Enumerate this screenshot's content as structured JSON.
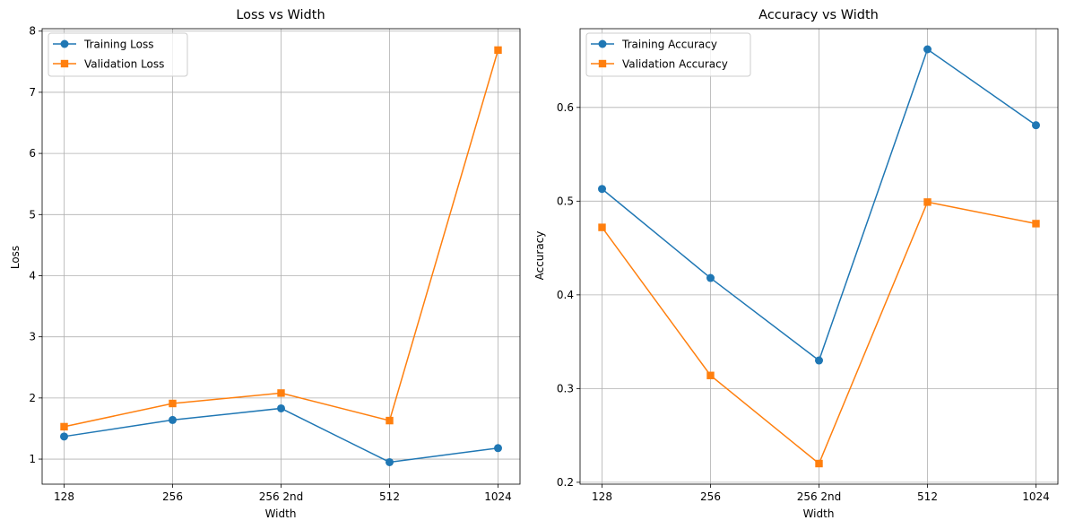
{
  "chart_data": [
    {
      "type": "line",
      "title": "Loss vs Width",
      "xlabel": "Width",
      "ylabel": "Loss",
      "categories": [
        "128",
        "256",
        "256 2nd",
        "512",
        "1024"
      ],
      "ylim": [
        0.59,
        8.04
      ],
      "yticks": [
        1,
        2,
        3,
        4,
        5,
        6,
        7,
        8
      ],
      "grid": true,
      "legend_position": "top-left",
      "series": [
        {
          "name": "Training Loss",
          "marker": "circle",
          "color": "#1f77b4",
          "values": [
            1.37,
            1.64,
            1.83,
            0.95,
            1.18
          ]
        },
        {
          "name": "Validation Loss",
          "marker": "square",
          "color": "#ff7f0e",
          "values": [
            1.53,
            1.91,
            2.08,
            1.63,
            7.69
          ]
        }
      ]
    },
    {
      "type": "line",
      "title": "Accuracy vs Width",
      "xlabel": "Width",
      "ylabel": "Accuracy",
      "categories": [
        "128",
        "256",
        "256 2nd",
        "512",
        "1024"
      ],
      "ylim": [
        0.198,
        0.684
      ],
      "yticks": [
        0.2,
        0.3,
        0.4,
        0.5,
        0.6
      ],
      "grid": true,
      "legend_position": "top-left",
      "series": [
        {
          "name": "Training Accuracy",
          "marker": "circle",
          "color": "#1f77b4",
          "values": [
            0.513,
            0.418,
            0.33,
            0.662,
            0.581
          ]
        },
        {
          "name": "Validation Accuracy",
          "marker": "square",
          "color": "#ff7f0e",
          "values": [
            0.472,
            0.314,
            0.22,
            0.499,
            0.476
          ]
        }
      ]
    }
  ]
}
